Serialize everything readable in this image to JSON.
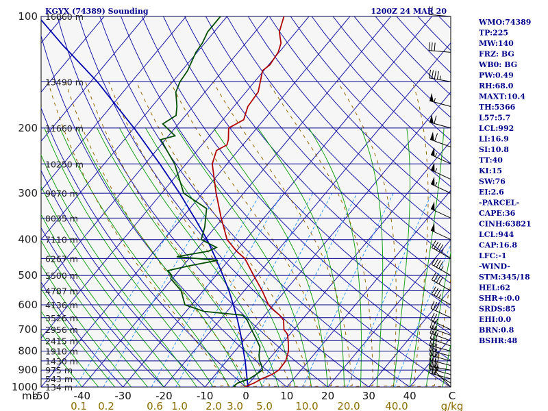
{
  "header": {
    "station_title": "KGYX (74389) Sounding",
    "time_title": "1200Z 24 MAR 20"
  },
  "colors": {
    "isobar": "#00008b",
    "dry_adiabat": "#1818a8",
    "isotherm": "#1818a8",
    "moist_adiabat": "#19a119",
    "mixing_ratio": "#3399ff",
    "parcel": "#996600",
    "temperature": "#b00000",
    "dewpoint": "#004d00",
    "reference_curve": "#0000b0",
    "wind_barb": "#000000"
  },
  "indices": [
    "WMO:74389",
    "TP:225",
    "MW:140",
    "FRZ: BG",
    "WB0: BG",
    "PW:0.49",
    "RH:68.0",
    "MAXT:10.4",
    "TH:5366",
    "L57:5.7",
    "LCL:992",
    "LI:16.9",
    "SI:10.8",
    "TT:40",
    "KI:15",
    "SW:76",
    "EI:2.6",
    "-PARCEL-",
    "CAPE:36",
    "CINH:63821",
    "LCL:944",
    "CAP:16.8",
    "LFC:-1",
    "-WIND-",
    "STM:345/18",
    "HEL:62",
    "SHR+:0.0",
    "SRDS:85",
    "EHI:0.0",
    "BRN:0.8",
    "BSHR:48"
  ],
  "chart_data": {
    "type": "skew-t log-p",
    "y_axis": {
      "label": "mb",
      "scale": "log",
      "ticks": [
        100,
        200,
        300,
        400,
        500,
        600,
        700,
        800,
        900,
        1000
      ],
      "range": [
        1000,
        100
      ]
    },
    "x_axis": {
      "label": "C",
      "ticks": [
        -50,
        -40,
        -30,
        -20,
        -10,
        0,
        10,
        20,
        30,
        40
      ],
      "range": [
        -50,
        50
      ]
    },
    "mixing_ratio_axis": {
      "unit": "g/kg",
      "ticks": [
        "0.1",
        "0.2",
        "0.6",
        "1.0",
        "2.0",
        "3.0",
        "5.0",
        "10.0",
        "20.0",
        "40.0"
      ]
    },
    "height_labels": [
      {
        "p": 100,
        "label": "16060 m"
      },
      {
        "p": 150,
        "label": "13490 m"
      },
      {
        "p": 200,
        "label": "11660 m"
      },
      {
        "p": 250,
        "label": "10250 m"
      },
      {
        "p": 300,
        "label": "9070 m"
      },
      {
        "p": 350,
        "label": "8035 m"
      },
      {
        "p": 400,
        "label": "7110 m"
      },
      {
        "p": 450,
        "label": "6267 m"
      },
      {
        "p": 500,
        "label": "5500 m"
      },
      {
        "p": 550,
        "label": "4787 m"
      },
      {
        "p": 600,
        "label": "4136 m"
      },
      {
        "p": 650,
        "label": "3526 m"
      },
      {
        "p": 700,
        "label": "2956 m"
      },
      {
        "p": 750,
        "label": "2415 m"
      },
      {
        "p": 800,
        "label": "1910 m"
      },
      {
        "p": 850,
        "label": "1430 m"
      },
      {
        "p": 900,
        "label": "975 m"
      },
      {
        "p": 950,
        "label": "543 m"
      },
      {
        "p": 1000,
        "label": "134 m"
      }
    ],
    "temperature": [
      {
        "p": 1000,
        "t": -0.4
      },
      {
        "p": 993,
        "t": 0.1
      },
      {
        "p": 975,
        "t": 1.2
      },
      {
        "p": 950,
        "t": 2.2
      },
      {
        "p": 925,
        "t": 3.8
      },
      {
        "p": 900,
        "t": 4.6
      },
      {
        "p": 850,
        "t": 4.4
      },
      {
        "p": 800,
        "t": 3.1
      },
      {
        "p": 750,
        "t": 0.9
      },
      {
        "p": 720,
        "t": -0.6
      },
      {
        "p": 700,
        "t": -2.4
      },
      {
        "p": 660,
        "t": -4.4
      },
      {
        "p": 640,
        "t": -6.4
      },
      {
        "p": 620,
        "t": -8.9
      },
      {
        "p": 600,
        "t": -11.2
      },
      {
        "p": 550,
        "t": -15.6
      },
      {
        "p": 500,
        "t": -20.8
      },
      {
        "p": 450,
        "t": -26.4
      },
      {
        "p": 430,
        "t": -29.9
      },
      {
        "p": 400,
        "t": -34.6
      },
      {
        "p": 350,
        "t": -40.4
      },
      {
        "p": 300,
        "t": -46.7
      },
      {
        "p": 250,
        "t": -53.6
      },
      {
        "p": 230,
        "t": -55.3
      },
      {
        "p": 222,
        "t": -53.9
      },
      {
        "p": 215,
        "t": -54.6
      },
      {
        "p": 200,
        "t": -56.9
      },
      {
        "p": 190,
        "t": -54.9
      },
      {
        "p": 175,
        "t": -56.6
      },
      {
        "p": 160,
        "t": -57.0
      },
      {
        "p": 150,
        "t": -58.6
      },
      {
        "p": 140,
        "t": -60.3
      },
      {
        "p": 135,
        "t": -59.7
      },
      {
        "p": 125,
        "t": -60.2
      },
      {
        "p": 118,
        "t": -61.4
      },
      {
        "p": 110,
        "t": -64.1
      },
      {
        "p": 100,
        "t": -66.1
      }
    ],
    "dewpoint": [
      {
        "p": 1000,
        "t": -2.6
      },
      {
        "p": 993,
        "t": -3.1
      },
      {
        "p": 975,
        "t": -2.8
      },
      {
        "p": 950,
        "t": -0.8
      },
      {
        "p": 925,
        "t": -0.1
      },
      {
        "p": 900,
        "t": 0.6
      },
      {
        "p": 870,
        "t": -0.8
      },
      {
        "p": 850,
        "t": -2.0
      },
      {
        "p": 820,
        "t": -3.3
      },
      {
        "p": 780,
        "t": -4.7
      },
      {
        "p": 750,
        "t": -6.7
      },
      {
        "p": 700,
        "t": -10.3
      },
      {
        "p": 660,
        "t": -13.3
      },
      {
        "p": 640,
        "t": -15.4
      },
      {
        "p": 625,
        "t": -25.6
      },
      {
        "p": 600,
        "t": -31.6
      },
      {
        "p": 550,
        "t": -35.4
      },
      {
        "p": 510,
        "t": -40.4
      },
      {
        "p": 500,
        "t": -40.8
      },
      {
        "p": 485,
        "t": -42.7
      },
      {
        "p": 470,
        "t": -38.2
      },
      {
        "p": 455,
        "t": -32.6
      },
      {
        "p": 445,
        "t": -43.4
      },
      {
        "p": 430,
        "t": -36.8
      },
      {
        "p": 420,
        "t": -35.6
      },
      {
        "p": 400,
        "t": -40.9
      },
      {
        "p": 370,
        "t": -42.6
      },
      {
        "p": 330,
        "t": -45.9
      },
      {
        "p": 300,
        "t": -54.6
      },
      {
        "p": 280,
        "t": -57.7
      },
      {
        "p": 250,
        "t": -62.8
      },
      {
        "p": 230,
        "t": -67.4
      },
      {
        "p": 215,
        "t": -71.1
      },
      {
        "p": 210,
        "t": -68.4
      },
      {
        "p": 195,
        "t": -73.8
      },
      {
        "p": 185,
        "t": -72.3
      },
      {
        "p": 175,
        "t": -73.9
      },
      {
        "p": 160,
        "t": -77.1
      },
      {
        "p": 150,
        "t": -78.2
      },
      {
        "p": 140,
        "t": -78.6
      },
      {
        "p": 125,
        "t": -80.3
      },
      {
        "p": 118,
        "t": -80.6
      },
      {
        "p": 110,
        "t": -81.6
      },
      {
        "p": 100,
        "t": -81.6
      }
    ],
    "reference_curve": [
      {
        "p": 1000,
        "t": 0.5
      },
      {
        "p": 950,
        "t": -1.4
      },
      {
        "p": 900,
        "t": -3.4
      },
      {
        "p": 850,
        "t": -5.5
      },
      {
        "p": 800,
        "t": -7.9
      },
      {
        "p": 750,
        "t": -10.4
      },
      {
        "p": 700,
        "t": -13.2
      },
      {
        "p": 650,
        "t": -16.3
      },
      {
        "p": 600,
        "t": -19.8
      },
      {
        "p": 550,
        "t": -23.7
      },
      {
        "p": 500,
        "t": -28.3
      },
      {
        "p": 450,
        "t": -33.5
      },
      {
        "p": 400,
        "t": -39.5
      },
      {
        "p": 350,
        "t": -46.9
      },
      {
        "p": 300,
        "t": -55.6
      },
      {
        "p": 250,
        "t": -66.4
      },
      {
        "p": 200,
        "t": -80.0
      },
      {
        "p": 150,
        "t": -98.4
      },
      {
        "p": 120,
        "t": -114.0
      },
      {
        "p": 100,
        "t": -126.1
      }
    ],
    "wind_barbs": [
      {
        "p": 1000,
        "dir": 315,
        "spd": 5
      },
      {
        "p": 975,
        "dir": 300,
        "spd": 20
      },
      {
        "p": 950,
        "dir": 285,
        "spd": 30
      },
      {
        "p": 925,
        "dir": 285,
        "spd": 35
      },
      {
        "p": 900,
        "dir": 280,
        "spd": 35
      },
      {
        "p": 875,
        "dir": 285,
        "spd": 35
      },
      {
        "p": 850,
        "dir": 285,
        "spd": 35
      },
      {
        "p": 825,
        "dir": 285,
        "spd": 30
      },
      {
        "p": 800,
        "dir": 285,
        "spd": 30
      },
      {
        "p": 775,
        "dir": 290,
        "spd": 30
      },
      {
        "p": 750,
        "dir": 290,
        "spd": 25
      },
      {
        "p": 725,
        "dir": 290,
        "spd": 25
      },
      {
        "p": 700,
        "dir": 295,
        "spd": 25
      },
      {
        "p": 650,
        "dir": 295,
        "spd": 30
      },
      {
        "p": 600,
        "dir": 300,
        "spd": 35
      },
      {
        "p": 550,
        "dir": 300,
        "spd": 40
      },
      {
        "p": 500,
        "dir": 300,
        "spd": 45
      },
      {
        "p": 450,
        "dir": 300,
        "spd": 45
      },
      {
        "p": 400,
        "dir": 295,
        "spd": 50
      },
      {
        "p": 350,
        "dir": 295,
        "spd": 50
      },
      {
        "p": 300,
        "dir": 295,
        "spd": 55
      },
      {
        "p": 275,
        "dir": 295,
        "spd": 55
      },
      {
        "p": 250,
        "dir": 295,
        "spd": 55
      },
      {
        "p": 225,
        "dir": 290,
        "spd": 60
      },
      {
        "p": 200,
        "dir": 285,
        "spd": 60
      },
      {
        "p": 175,
        "dir": 285,
        "spd": 55
      },
      {
        "p": 150,
        "dir": 280,
        "spd": 45
      },
      {
        "p": 125,
        "dir": 275,
        "spd": 30
      },
      {
        "p": 100,
        "dir": 275,
        "spd": 20
      }
    ]
  }
}
